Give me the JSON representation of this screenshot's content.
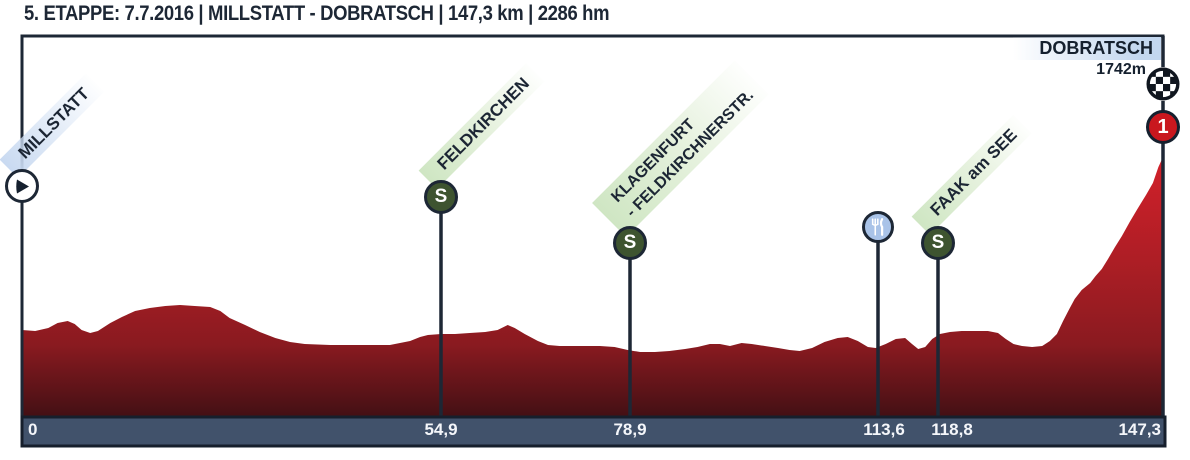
{
  "header": {
    "title": "5. ETAPPE: 7.7.2016 | MILLSTATT - DOBRATSCH | 147,3 km | 2286 hm"
  },
  "start": {
    "name": "MILLSTATT"
  },
  "finish": {
    "name": "DOBRATSCH",
    "altitude": "1742m",
    "category": "1"
  },
  "waypoints": {
    "sprint_letter": "S",
    "feldkirchen": "FELDKIRCHEN",
    "klagenfurt_line1": "KLAGENFURT",
    "klagenfurt_line2": "- FELDKIRCHNERSTR.",
    "faak": "FAAK am SEE"
  },
  "colors": {
    "frame_navy": "#1d2735",
    "axis_bar": "#41526b",
    "profile_red_top": "#d2202a",
    "profile_red_mid": "#8a1a20",
    "profile_red_bottom": "#431014",
    "sprint_green": "#3e5430",
    "feed_blue": "#a9c3e8",
    "category_red": "#c9171e",
    "label_green": "#cfe6c3",
    "label_blue": "#c9daf1"
  },
  "chart_data": {
    "type": "area",
    "title": "5. ETAPPE: 7.7.2016 | MILLSTATT - DOBRATSCH | 147,3 km | 2286 hm",
    "x_unit": "km",
    "x_range": [
      0,
      147.3
    ],
    "total_distance_km": 147.3,
    "total_climbing": "2286 hm",
    "summit_altitude_m": 1742,
    "legend_position": "none",
    "grid": false,
    "axis_ticks": [
      "0",
      "54,9",
      "78,9",
      "113,6",
      "118,8",
      "147,3"
    ],
    "markers": [
      {
        "km": 0,
        "label": "MILLSTATT",
        "type": "start"
      },
      {
        "km": 54.9,
        "label": "FELDKIRCHEN",
        "type": "sprint"
      },
      {
        "km": 78.9,
        "label": "KLAGENFURT - FELDKIRCHNERSTR.",
        "type": "sprint"
      },
      {
        "km": 113.6,
        "label": "",
        "type": "feed-zone"
      },
      {
        "km": 118.8,
        "label": "FAAK am SEE",
        "type": "sprint"
      },
      {
        "km": 147.3,
        "label": "DOBRATSCH",
        "type": "finish-category-1"
      }
    ],
    "profile": [
      [
        0,
        87
      ],
      [
        1.7,
        86
      ],
      [
        3.4,
        89
      ],
      [
        4.6,
        94
      ],
      [
        5.9,
        96
      ],
      [
        6.8,
        93
      ],
      [
        7.7,
        87
      ],
      [
        8.8,
        84
      ],
      [
        9.8,
        86
      ],
      [
        11.4,
        94
      ],
      [
        12.9,
        100
      ],
      [
        14.6,
        106
      ],
      [
        16.5,
        109
      ],
      [
        18.5,
        111
      ],
      [
        20.4,
        112
      ],
      [
        22.3,
        111
      ],
      [
        24.3,
        110
      ],
      [
        25.6,
        106
      ],
      [
        26.8,
        99
      ],
      [
        28.8,
        92
      ],
      [
        30.7,
        85
      ],
      [
        32.7,
        79
      ],
      [
        34.6,
        75
      ],
      [
        36.5,
        73
      ],
      [
        39.8,
        72
      ],
      [
        43.6,
        72
      ],
      [
        47.5,
        72
      ],
      [
        50.1,
        76
      ],
      [
        51.4,
        80
      ],
      [
        52.4,
        82
      ],
      [
        54.1,
        83
      ],
      [
        55.9,
        83
      ],
      [
        57.8,
        84
      ],
      [
        59.8,
        85
      ],
      [
        61.4,
        87
      ],
      [
        62.7,
        92
      ],
      [
        63.6,
        89
      ],
      [
        64.9,
        83
      ],
      [
        66.6,
        76
      ],
      [
        67.9,
        72
      ],
      [
        69.4,
        71
      ],
      [
        72,
        71
      ],
      [
        74.6,
        71
      ],
      [
        76.5,
        70
      ],
      [
        78.2,
        67
      ],
      [
        79.8,
        65
      ],
      [
        81.7,
        65
      ],
      [
        83.6,
        66
      ],
      [
        85.6,
        68
      ],
      [
        87.2,
        70
      ],
      [
        88.8,
        73
      ],
      [
        90.1,
        73
      ],
      [
        91.4,
        71
      ],
      [
        92.9,
        74
      ],
      [
        94.2,
        73
      ],
      [
        95.9,
        71
      ],
      [
        97.6,
        69
      ],
      [
        99.1,
        67
      ],
      [
        100.4,
        66
      ],
      [
        102,
        69
      ],
      [
        103.6,
        75
      ],
      [
        105.3,
        79
      ],
      [
        106.6,
        80
      ],
      [
        107.9,
        76
      ],
      [
        109.2,
        70
      ],
      [
        110.2,
        69
      ],
      [
        111.5,
        73
      ],
      [
        112.8,
        78
      ],
      [
        114,
        79
      ],
      [
        114.9,
        73
      ],
      [
        115.7,
        68
      ],
      [
        116.6,
        70
      ],
      [
        117.5,
        78
      ],
      [
        118.5,
        83
      ],
      [
        119.8,
        85
      ],
      [
        121.3,
        86
      ],
      [
        123,
        86
      ],
      [
        124.7,
        86
      ],
      [
        126,
        84
      ],
      [
        127,
        78
      ],
      [
        128,
        73
      ],
      [
        129.1,
        71
      ],
      [
        130.4,
        70
      ],
      [
        131.7,
        71
      ],
      [
        132.7,
        76
      ],
      [
        133.6,
        83
      ],
      [
        134.4,
        96
      ],
      [
        135.2,
        108
      ],
      [
        135.9,
        118
      ],
      [
        136.8,
        127
      ],
      [
        137.9,
        134
      ],
      [
        138.6,
        141
      ],
      [
        139.4,
        148
      ],
      [
        140.2,
        158
      ],
      [
        141.1,
        170
      ],
      [
        142,
        181
      ],
      [
        143,
        195
      ],
      [
        144,
        208
      ],
      [
        145.1,
        222
      ],
      [
        146,
        234
      ],
      [
        146.7,
        250
      ],
      [
        147.3,
        260
      ]
    ]
  }
}
